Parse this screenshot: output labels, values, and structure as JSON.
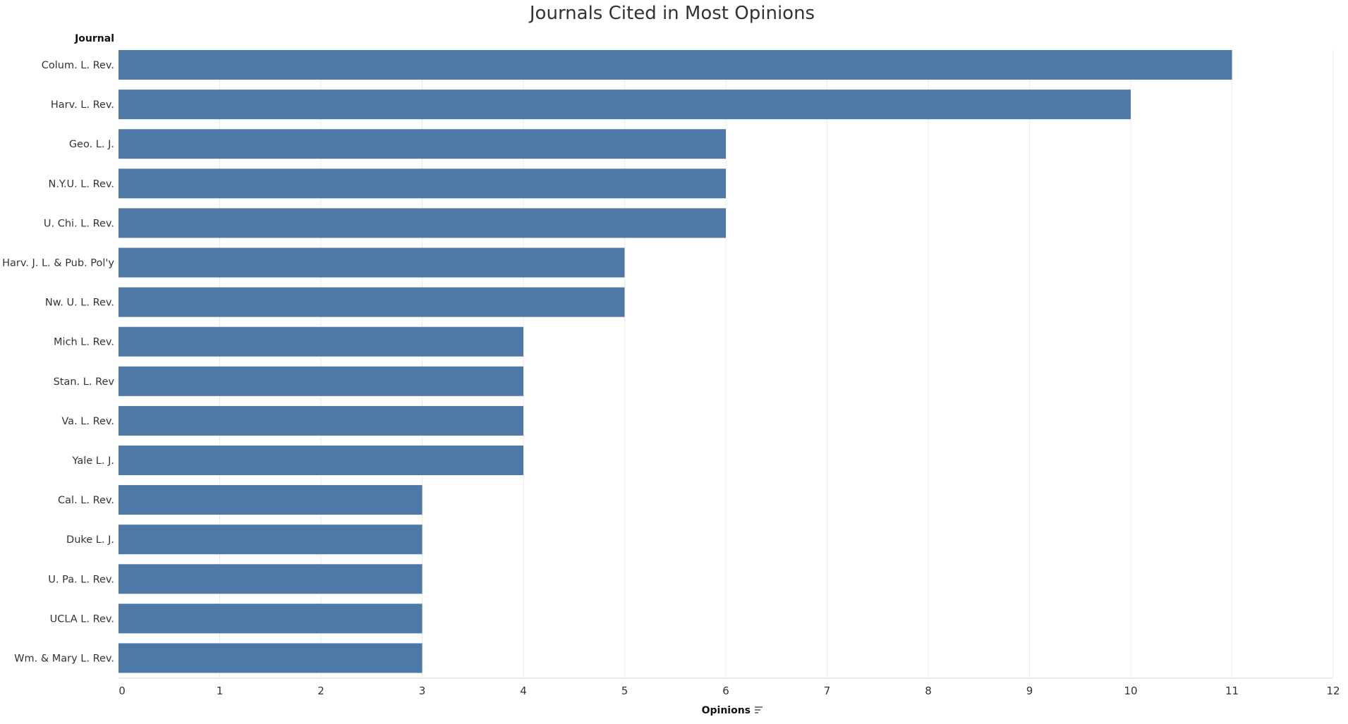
{
  "chart_data": {
    "type": "bar",
    "orientation": "horizontal",
    "title": "Journals Cited in Most Opinions",
    "row_header": "Journal",
    "xlabel": "Opinions",
    "xlabel_icon": "sort-icon",
    "categories": [
      "Colum. L. Rev.",
      "Harv. L. Rev.",
      "Geo. L. J.",
      "N.Y.U. L. Rev.",
      "U. Chi. L. Rev.",
      "Harv. J. L. & Pub. Pol'y",
      "Nw. U. L. Rev.",
      "Mich L. Rev.",
      "Stan. L. Rev",
      "Va. L. Rev.",
      "Yale L. J.",
      "Cal. L. Rev.",
      "Duke L. J.",
      "U. Pa. L. Rev.",
      "UCLA L. Rev.",
      "Wm. & Mary L. Rev."
    ],
    "values": [
      11,
      10,
      6,
      6,
      6,
      5,
      5,
      4,
      4,
      4,
      4,
      3,
      3,
      3,
      3,
      3
    ],
    "xlim": [
      0,
      12
    ],
    "xticks": [
      0,
      1,
      2,
      3,
      4,
      5,
      6,
      7,
      8,
      9,
      10,
      11,
      12
    ],
    "grid": true,
    "bar_color": "#4e79a7"
  }
}
